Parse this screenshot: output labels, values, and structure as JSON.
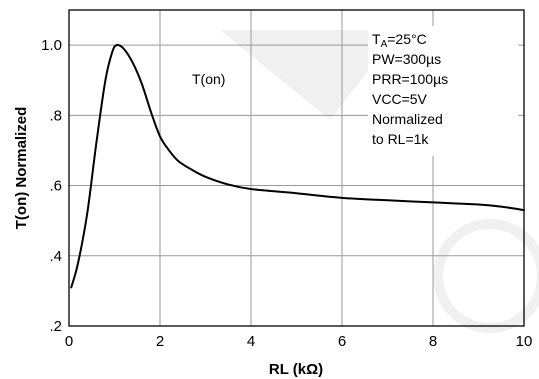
{
  "chart_data": {
    "type": "line",
    "xlabel": "RL (kΩ)",
    "ylabel": "T(on) Normalized",
    "xlim": [
      0,
      10
    ],
    "ylim": [
      0.2,
      1.1
    ],
    "x_ticks": [
      "0",
      "2",
      "4",
      "6",
      "8",
      "10"
    ],
    "y_ticks": [
      ".2",
      ".4",
      ".6",
      ".8",
      "1.0"
    ],
    "grid": true,
    "series": [
      {
        "name": "T(on)",
        "x": [
          0.05,
          0.2,
          0.4,
          0.6,
          0.8,
          0.95,
          1.05,
          1.2,
          1.4,
          1.6,
          1.8,
          2.0,
          2.2,
          2.4,
          2.7,
          3.0,
          3.5,
          4.0,
          5.0,
          6.0,
          7.0,
          8.0,
          9.0,
          9.5,
          10.0
        ],
        "y": [
          0.31,
          0.38,
          0.52,
          0.72,
          0.9,
          0.98,
          1.0,
          0.99,
          0.95,
          0.89,
          0.81,
          0.74,
          0.7,
          0.67,
          0.645,
          0.625,
          0.603,
          0.59,
          0.578,
          0.565,
          0.558,
          0.552,
          0.546,
          0.54,
          0.53
        ]
      }
    ],
    "annotations": {
      "curve_label": "T(on)",
      "conditions": [
        "TA=25°C",
        "PW=300µs",
        "PRR=100µs",
        "VCC=5V",
        "Normalized",
        "to RL=1k"
      ]
    }
  }
}
